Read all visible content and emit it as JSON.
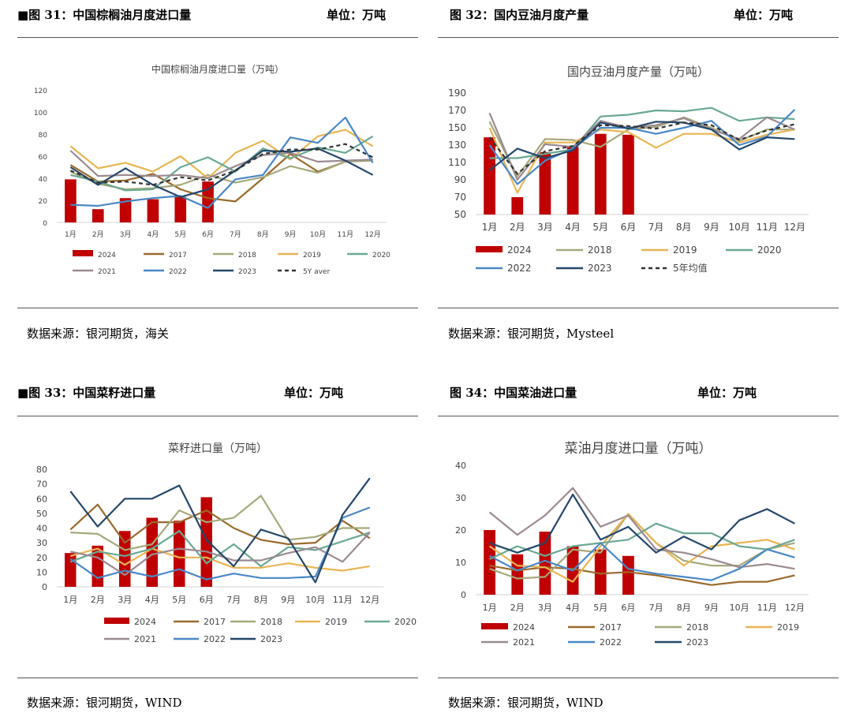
{
  "panels": [
    {
      "heading": "■图 31：中国棕榈油月度进口量",
      "unit": "单位：万吨",
      "source": "数据来源：银河期货，海关",
      "chart_data": {
        "type": "line",
        "title": "中国棕榈油月度进口量（万吨）",
        "categories": [
          "1月",
          "2月",
          "3月",
          "4月",
          "5月",
          "6月",
          "7月",
          "8月",
          "9月",
          "10月",
          "11月",
          "12月"
        ],
        "ylim": [
          0,
          120
        ],
        "yticks": [
          0,
          20,
          40,
          60,
          80,
          100,
          120
        ],
        "grid": false,
        "legend_position": "bottom",
        "bars": {
          "name": "2024",
          "color": "#c00000",
          "values": [
            39,
            12,
            22,
            21,
            23,
            37
          ]
        },
        "series": [
          {
            "name": "2017",
            "color": "#9a6a2b",
            "dash": false,
            "values": [
              52,
              37,
              38,
              44,
              30,
              22,
              19,
              40,
              62,
              46,
              55,
              57
            ]
          },
          {
            "name": "2018",
            "color": "#a6a97a",
            "dash": false,
            "values": [
              46,
              35,
              30,
              31,
              34,
              43,
              36,
              41,
              51,
              45,
              55,
              56
            ]
          },
          {
            "name": "2019",
            "color": "#e8b553",
            "dash": false,
            "values": [
              69,
              49,
              54,
              46,
              60,
              40,
              63,
              74,
              57,
              78,
              84,
              69
            ]
          },
          {
            "name": "2020",
            "color": "#6aa993",
            "dash": false,
            "values": [
              43,
              37,
              29,
              30,
              50,
              59,
              46,
              67,
              58,
              68,
              63,
              78
            ]
          },
          {
            "name": "2021",
            "color": "#9b8a90",
            "dash": false,
            "values": [
              65,
              42,
              43,
              42,
              43,
              40,
              51,
              61,
              63,
              55,
              56,
              57
            ]
          },
          {
            "name": "2022",
            "color": "#4a88c7",
            "dash": false,
            "values": [
              16,
              15,
              19,
              22,
              24,
              13,
              39,
              43,
              77,
              72,
              95,
              54
            ]
          },
          {
            "name": "2023",
            "color": "#24476b",
            "dash": false,
            "values": [
              50,
              34,
              49,
              34,
              23,
              30,
              47,
              65,
              64,
              67,
              56,
              43
            ]
          },
          {
            "name": "5Y aver",
            "color": "#333333",
            "dash": true,
            "values": [
              47,
              36,
              37,
              34,
              41,
              38,
              47,
              62,
              66,
              66,
              71,
              59
            ]
          }
        ]
      }
    },
    {
      "heading": "图 32：国内豆油月度产量",
      "unit": "单位：万吨",
      "source": "数据来源：银河期货，Mysteel",
      "chart_data": {
        "type": "line",
        "title": "国内豆油月度产量（万吨）",
        "categories": [
          "1月",
          "2月",
          "3月",
          "4月",
          "5月",
          "6月",
          "7月",
          "8月",
          "9月",
          "10月",
          "11月",
          "12月"
        ],
        "ylim": [
          50,
          190
        ],
        "yticks": [
          50,
          70,
          90,
          110,
          130,
          150,
          170,
          190
        ],
        "grid": false,
        "legend_position": "bottom",
        "bars": {
          "name": "2024",
          "color": "#c00000",
          "values": [
            139,
            70,
            122,
            128,
            143,
            142
          ]
        },
        "series": [
          {
            "name": "2018",
            "color": "#a6a97a",
            "dash": false,
            "values": [
              157,
              94,
              137,
              136,
              128,
              148,
              151,
              162,
              150,
              135,
              148,
              148
            ]
          },
          {
            "name": "2019",
            "color": "#e8b553",
            "dash": false,
            "values": [
              150,
              75,
              133,
              133,
              148,
              145,
              127,
              143,
              143,
              133,
              142,
              148
            ]
          },
          {
            "name": "2020",
            "color": "#6aa993",
            "dash": false,
            "values": [
              115,
              115,
              120,
              125,
              163,
              165,
              170,
              169,
              173,
              158,
              162,
              160
            ]
          },
          {
            "name": "2021",
            "color": "#9b8a90",
            "dash": false,
            "values": [
              167,
              90,
              131,
              128,
              158,
              150,
              153,
              161,
              148,
              137,
              162,
              148
            ]
          },
          {
            "name": "2022",
            "color": "#4a88c7",
            "dash": false,
            "values": [
              130,
              85,
              112,
              126,
              150,
              150,
              143,
              150,
              158,
              130,
              140,
              171
            ]
          },
          {
            "name": "2023",
            "color": "#24476b",
            "dash": false,
            "values": [
              101,
              126,
              115,
              124,
              156,
              149,
              157,
              156,
              148,
              125,
              139,
              137
            ]
          },
          {
            "name": "5年均值",
            "color": "#333333",
            "dash": true,
            "values": [
              139,
              97,
              123,
              129,
              153,
              152,
              149,
              156,
              153,
              136,
              147,
              154
            ]
          }
        ]
      }
    },
    {
      "heading": "■图 33：中国菜籽进口量",
      "unit": "单位：万吨",
      "source": "数据来源：银河期货，WIND",
      "chart_data": {
        "type": "line",
        "title": "菜籽进口量（万吨）",
        "categories": [
          "1月",
          "2月",
          "3月",
          "4月",
          "5月",
          "6月",
          "7月",
          "8月",
          "9月",
          "10月",
          "11月",
          "12月"
        ],
        "ylim": [
          0,
          80
        ],
        "yticks": [
          0,
          10,
          20,
          30,
          40,
          50,
          60,
          70,
          80
        ],
        "grid": false,
        "legend_position": "bottom",
        "bars": {
          "name": "2024",
          "color": "#c00000",
          "values": [
            23,
            28,
            38,
            47,
            45,
            61
          ]
        },
        "series": [
          {
            "name": "2017",
            "color": "#9a6a2b",
            "dash": false,
            "values": [
              39,
              56,
              30,
              44,
              44,
              52,
              40,
              32,
              29,
              30,
              45,
              33
            ]
          },
          {
            "name": "2018",
            "color": "#a6a97a",
            "dash": false,
            "values": [
              37,
              36,
              25,
              29,
              52,
              44,
              47,
              62,
              32,
              34,
              40,
              40
            ]
          },
          {
            "name": "2019",
            "color": "#e8b553",
            "dash": false,
            "values": [
              21,
              26,
              15,
              26,
              20,
              20,
              13,
              13,
              16,
              13,
              11,
              14
            ]
          },
          {
            "name": "2020",
            "color": "#6aa993",
            "dash": false,
            "values": [
              17,
              24,
              21,
              26,
              38,
              16,
              29,
              14,
              27,
              25,
              31,
              37
            ]
          },
          {
            "name": "2021",
            "color": "#9b8a90",
            "dash": false,
            "values": [
              24,
              20,
              8,
              22,
              26,
              24,
              18,
              18,
              23,
              27,
              17,
              37
            ]
          },
          {
            "name": "2022",
            "color": "#4a88c7",
            "dash": false,
            "values": [
              19,
              6,
              11,
              7,
              12,
              5,
              9,
              6,
              6,
              7,
              47,
              54
            ]
          },
          {
            "name": "2023",
            "color": "#24476b",
            "dash": false,
            "values": [
              65,
              41,
              60,
              60,
              69,
              32,
              14,
              39,
              33,
              3,
              49,
              74
            ]
          }
        ]
      }
    },
    {
      "heading": "图 34：中国菜油进口量",
      "unit": "单位：万吨",
      "source": "数据来源：银河期货，WIND",
      "chart_data": {
        "type": "line",
        "title": "菜油月度进口量（万吨）",
        "categories": [
          "1月",
          "2月",
          "3月",
          "4月",
          "5月",
          "6月",
          "7月",
          "8月",
          "9月",
          "10月",
          "11月",
          "12月"
        ],
        "ylim": [
          0,
          40
        ],
        "yticks": [
          0,
          10,
          20,
          30,
          40
        ],
        "grid": false,
        "legend_position": "bottom",
        "bars": {
          "name": "2024",
          "color": "#c00000",
          "values": [
            20,
            12.5,
            19.5,
            15,
            14,
            12
          ]
        },
        "series": [
          {
            "name": "2017",
            "color": "#9a6a2b",
            "dash": false,
            "values": [
              9,
              7.5,
              8.5,
              8,
              6.5,
              7,
              6,
              4.5,
              3,
              4,
              4,
              6
            ]
          },
          {
            "name": "2018",
            "color": "#a6a97a",
            "dash": false,
            "values": [
              8,
              5,
              5.5,
              14,
              13,
              25,
              16,
              10.5,
              9,
              9,
              14,
              16
            ]
          },
          {
            "name": "2019",
            "color": "#e8b553",
            "dash": false,
            "values": [
              15,
              9,
              8.5,
              4,
              15,
              25,
              16,
              9,
              15,
              16,
              17,
              14
            ]
          },
          {
            "name": "2020",
            "color": "#6aa993",
            "dash": false,
            "values": [
              11,
              15,
              12,
              15,
              16,
              17,
              22,
              19,
              19,
              15,
              14,
              17
            ]
          },
          {
            "name": "2021",
            "color": "#9b8a90",
            "dash": false,
            "values": [
              25.5,
              18.5,
              24.5,
              33,
              21,
              24.5,
              14,
              13,
              11,
              8.5,
              9.5,
              8
            ]
          },
          {
            "name": "2022",
            "color": "#4a88c7",
            "dash": false,
            "values": [
              12,
              7.5,
              10.5,
              7.5,
              16,
              8,
              6.5,
              5.5,
              4.5,
              8,
              14,
              11.5
            ]
          },
          {
            "name": "2023",
            "color": "#24476b",
            "dash": false,
            "values": [
              16,
              13,
              16,
              31,
              17,
              21,
              13,
              18,
              14,
              23,
              26.5,
              22
            ]
          }
        ]
      }
    }
  ]
}
